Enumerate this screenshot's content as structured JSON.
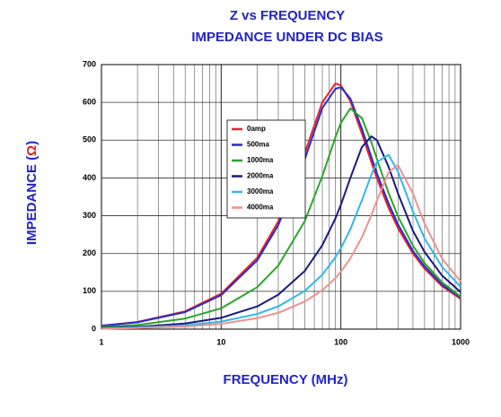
{
  "chart_data": {
    "type": "line",
    "title": "Z vs FREQUENCY",
    "subtitle": "IMPEDANCE UNDER DC BIAS",
    "x_label": "FREQUENCY (MHz)",
    "y_label": [
      "IMPEDANCE (",
      "Ω",
      ")"
    ],
    "x_scale": "log",
    "grid": true,
    "legend": "upper-center",
    "xlim": [
      1,
      1000
    ],
    "xticks": [
      1,
      10,
      100,
      1000
    ],
    "ylim": [
      0,
      700
    ],
    "yticks": [
      0,
      100,
      200,
      300,
      400,
      500,
      600,
      700
    ],
    "x": [
      1,
      2,
      5,
      10,
      20,
      30,
      50,
      70,
      90,
      100,
      120,
      150,
      180,
      200,
      250,
      300,
      400,
      500,
      700,
      1000
    ],
    "series": [
      {
        "name": "0amp",
        "color": "#e8232a",
        "values": [
          9,
          19,
          47,
          94,
          189,
          285,
          466,
          600,
          650,
          645,
          603,
          517,
          441,
          399,
          321,
          267,
          200,
          160,
          114,
          80
        ]
      },
      {
        "name": "500ma",
        "color": "#2a2ad0",
        "values": [
          9,
          18,
          45,
          90,
          182,
          275,
          450,
          585,
          636,
          640,
          610,
          530,
          455,
          412,
          333,
          277,
          207,
          166,
          118,
          83
        ]
      },
      {
        "name": "1000ma",
        "color": "#2aa52a",
        "values": [
          6,
          11,
          28,
          55,
          111,
          168,
          286,
          405,
          508,
          546,
          584,
          558,
          494,
          450,
          361,
          298,
          221,
          175,
          124,
          86
        ]
      },
      {
        "name": "2000ma",
        "color": "#1a1a80",
        "values": [
          3,
          6,
          15,
          30,
          60,
          91,
          154,
          222,
          293,
          329,
          400,
          482,
          510,
          500,
          430,
          359,
          260,
          204,
          142,
          98
        ]
      },
      {
        "name": "3000ma",
        "color": "#30b8e8",
        "values": [
          2,
          4,
          10,
          20,
          40,
          60,
          101,
          144,
          190,
          214,
          264,
          341,
          409,
          442,
          461,
          417,
          311,
          240,
          165,
          112
        ]
      },
      {
        "name": "4000ma",
        "color": "#f09090",
        "values": [
          1,
          3,
          7,
          14,
          29,
          43,
          73,
          103,
          135,
          152,
          187,
          243,
          302,
          340,
          415,
          434,
          359,
          279,
          187,
          126
        ]
      }
    ]
  }
}
